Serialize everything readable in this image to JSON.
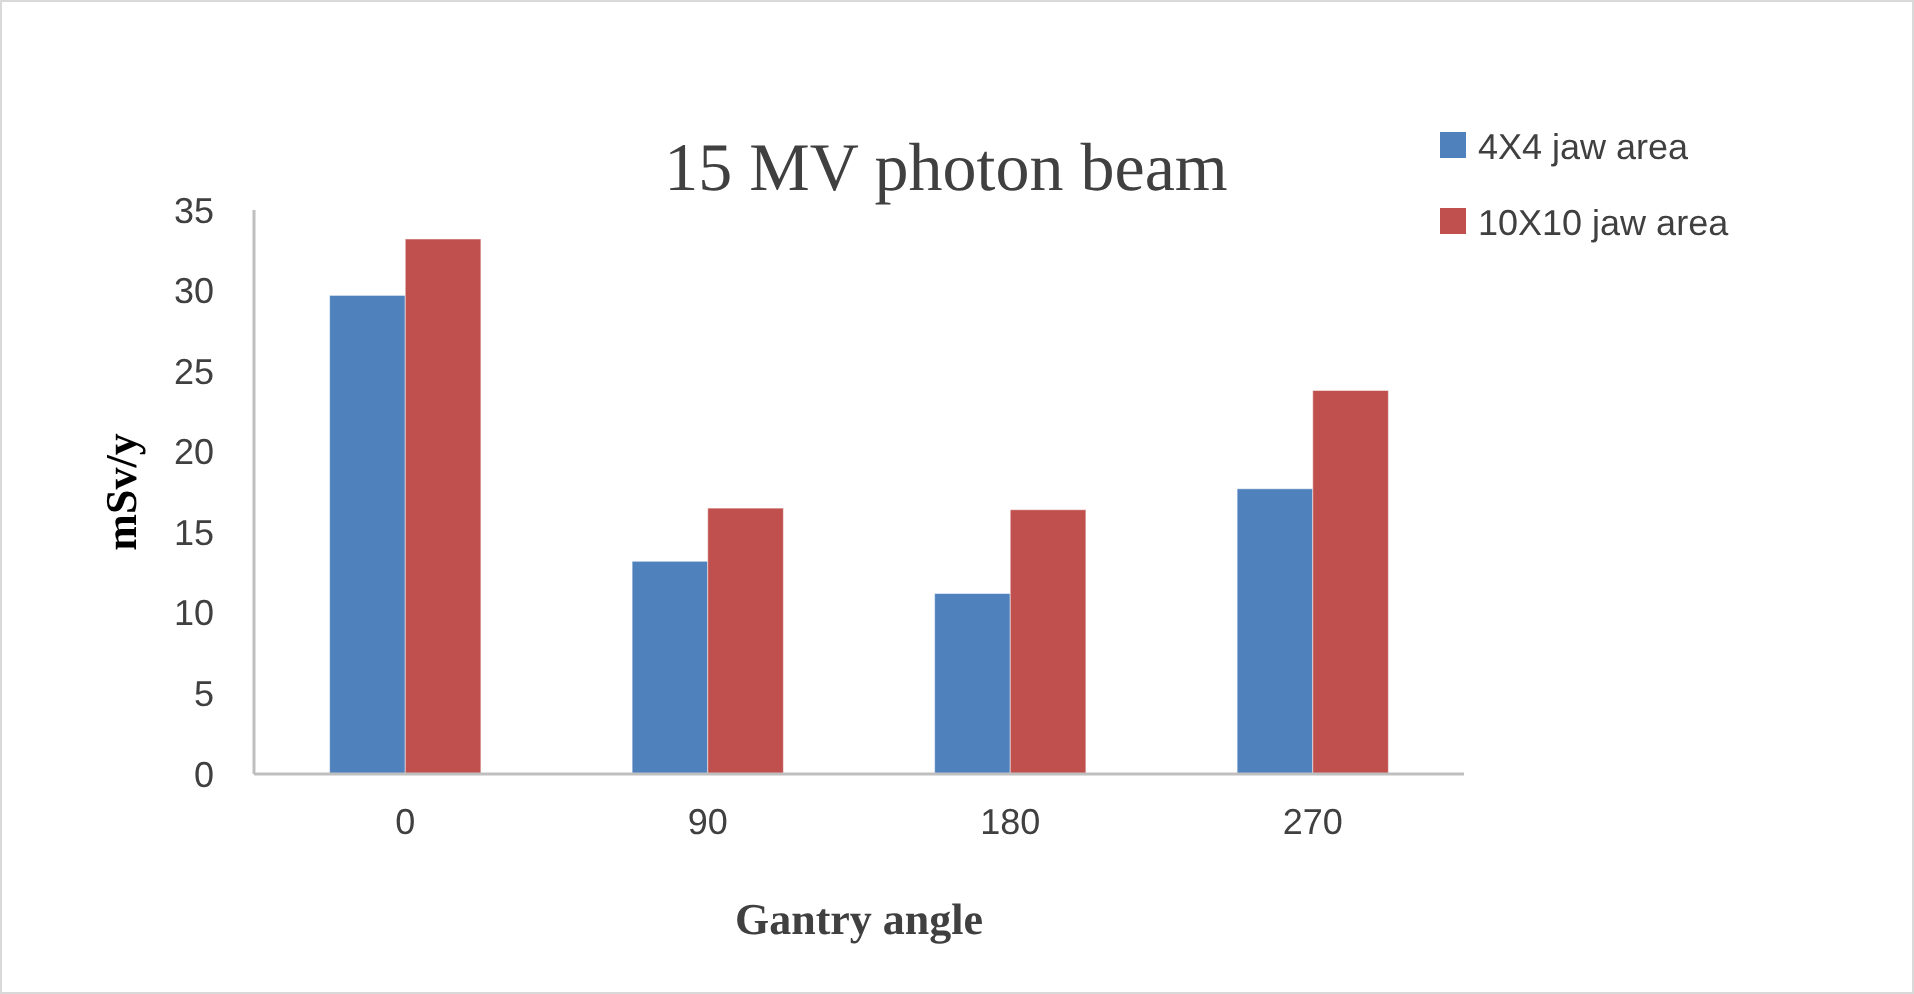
{
  "chart_data": {
    "type": "bar",
    "title": "15 MV photon beam",
    "xlabel": "Gantry angle",
    "ylabel": "mSv/y",
    "categories": [
      "0",
      "90",
      "180",
      "270"
    ],
    "series": [
      {
        "name": "4X4 jaw area",
        "color": "#4f81bd",
        "values": [
          29.7,
          13.2,
          11.2,
          17.7
        ]
      },
      {
        "name": "10X10 jaw area",
        "color": "#c0504d",
        "values": [
          33.2,
          16.5,
          16.4,
          23.8
        ]
      }
    ],
    "ylim": [
      0,
      35
    ],
    "yticks": [
      0,
      5,
      10,
      15,
      20,
      25,
      30,
      35
    ],
    "grid": false,
    "legend": "top right"
  }
}
